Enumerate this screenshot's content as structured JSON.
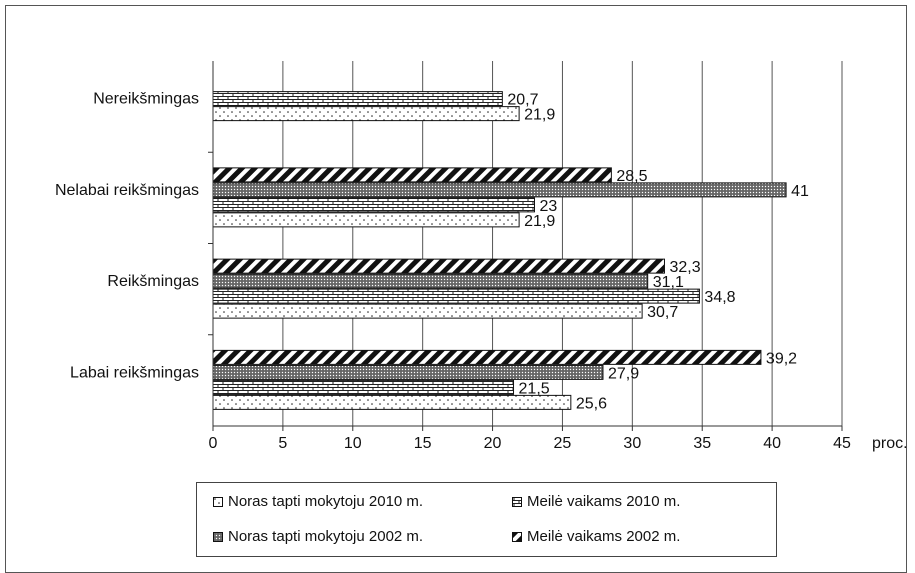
{
  "chart_data": {
    "type": "bar",
    "orientation": "horizontal",
    "categories": [
      "Nereikšmingas",
      "Nelabai reikšmingas",
      "Reikšmingas",
      "Labai reikšmingas"
    ],
    "series": [
      {
        "name": "Noras tapti mokytoju 2010 m.",
        "pattern": "dots",
        "values": [
          21.9,
          21.9,
          30.7,
          25.6
        ],
        "labels": [
          "21,9",
          "21,9",
          "30,7",
          "25,6"
        ]
      },
      {
        "name": "Meilė vaikams 2010 m.",
        "pattern": "bricks",
        "values": [
          20.7,
          23,
          34.8,
          21.5
        ],
        "labels": [
          "20,7",
          "23",
          "34,8",
          "21,5"
        ]
      },
      {
        "name": "Noras tapti mokytoju 2002 m.",
        "pattern": "crosshatch",
        "values": [
          null,
          41,
          31.1,
          27.9
        ],
        "labels": [
          "",
          "41",
          "31,1",
          "27,9"
        ]
      },
      {
        "name": "Meilė vaikams 2002 m.",
        "pattern": "diagonal",
        "values": [
          null,
          28.5,
          32.3,
          39.2
        ],
        "labels": [
          "",
          "28,5",
          "32,3",
          "39,2"
        ]
      }
    ],
    "xlim": [
      0,
      45
    ],
    "xticks": [
      0,
      5,
      10,
      15,
      20,
      25,
      30,
      35,
      40,
      45
    ],
    "xlabel": "proc.",
    "grid": true,
    "legend_position": "bottom"
  }
}
